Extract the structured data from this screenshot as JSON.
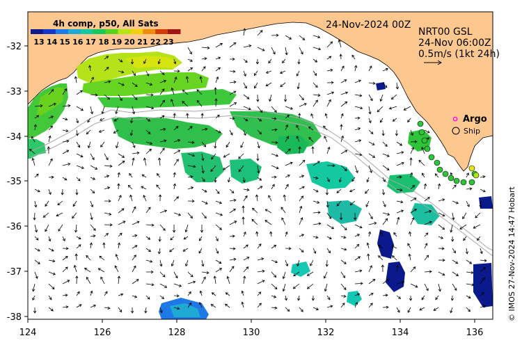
{
  "colorbar": {
    "title": "4h comp, p50, All Sats",
    "ticks": [
      "13",
      "14",
      "15",
      "16",
      "17",
      "18",
      "19",
      "20",
      "21",
      "22",
      "23"
    ],
    "colors": [
      "#0a1a8c",
      "#1636c8",
      "#1e78e6",
      "#1eaad2",
      "#14c8a0",
      "#19c85a",
      "#5ad21e",
      "#b4e614",
      "#f0d20a",
      "#f08c0a",
      "#d23c0a",
      "#a01414"
    ]
  },
  "annotations": {
    "date": "24-Nov-2024 00Z",
    "vector_source": "NRT00 GSL",
    "vector_time": "24-Nov 06:00Z",
    "scale": "0.5m/s (1kt 24h)"
  },
  "legend": {
    "argo": "Argo",
    "ship": "Ship"
  },
  "axes": {
    "x_ticks": [
      "124",
      "126",
      "128",
      "130",
      "132",
      "134",
      "136"
    ],
    "y_ticks": [
      "-32",
      "-33",
      "-34",
      "-35",
      "-36",
      "-37",
      "-38"
    ]
  },
  "credit": "© IMOS 27-Nov-2024 14:47 Hobart",
  "colors": {
    "land": "#fdc890",
    "sea": "#ffffff",
    "frame": "#000000",
    "argo_marker": "#ff00ff"
  }
}
